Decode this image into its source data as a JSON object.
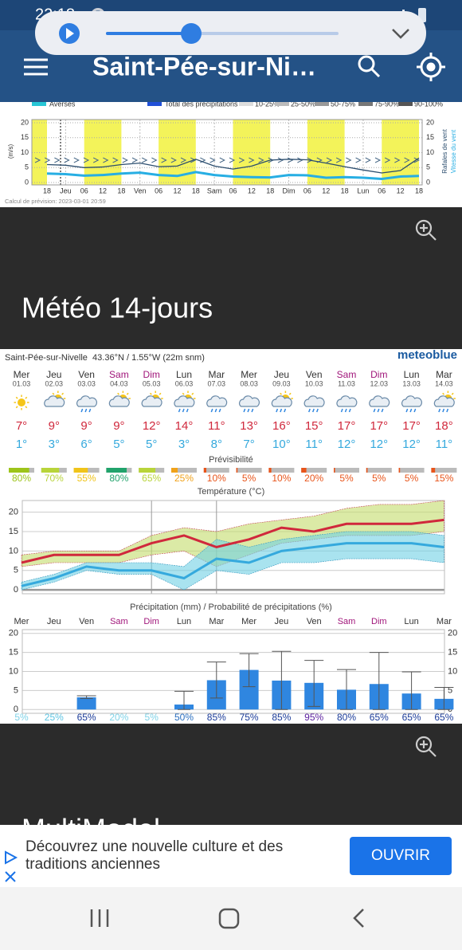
{
  "status_bar": {
    "time": "22:18",
    "notifications": "5"
  },
  "header": {
    "title": "Saint-Pée-sur-Ni…"
  },
  "wind_chart": {
    "legend": [
      "Averses",
      "Total des précipitations",
      "10-25%",
      "25-50%",
      "50-75%",
      "75-90%",
      "90-100%"
    ],
    "y_label": "(m/s)",
    "y2_labels": [
      "Rafales de vent",
      "Vitesse du vent"
    ],
    "x_labels": [
      "18",
      "Jeu",
      "06",
      "12",
      "18",
      "Ven",
      "06",
      "12",
      "18",
      "Sam",
      "06",
      "12",
      "18",
      "Dim",
      "06",
      "12",
      "18",
      "Lun",
      "06",
      "12",
      "18"
    ],
    "ylim": [
      0,
      20
    ],
    "yticks": [
      0,
      5,
      10,
      15,
      20
    ],
    "gusts": {
      "color": "#2b4d6e",
      "values": [
        6,
        5.8,
        5,
        5.2,
        6,
        6.5,
        5.3,
        5.5,
        7.8,
        5.5,
        4.5,
        5.5,
        7.5,
        7.8,
        7.6,
        6.5,
        5.3,
        4.2,
        3.2,
        4,
        8.2
      ]
    },
    "speed": {
      "color": "#27aee3",
      "values": [
        3,
        2.8,
        2.3,
        2.5,
        3,
        3.3,
        2.5,
        2.2,
        3.5,
        2.5,
        2,
        1.8,
        1.7,
        2.5,
        2.4,
        1.6,
        1.8,
        1.6,
        1.2,
        2,
        2.2
      ]
    },
    "footer": "Calcul de prévision: 2023-03-01 20:59"
  },
  "section_titles": [
    "Météo 14-jours",
    "MultiModel"
  ],
  "forecast": {
    "location": "Saint-Pée-sur-Nivelle  43.36°N / 1.55°W (22m snm)",
    "brand": "meteoblue",
    "days": [
      {
        "name": "Mer",
        "date": "01.03",
        "color": "#333333"
      },
      {
        "name": "Jeu",
        "date": "02.03",
        "color": "#333333"
      },
      {
        "name": "Ven",
        "date": "03.03",
        "color": "#333333"
      },
      {
        "name": "Sam",
        "date": "04.03",
        "color": "#a0157a"
      },
      {
        "name": "Dim",
        "date": "05.03",
        "color": "#a0157a"
      },
      {
        "name": "Lun",
        "date": "06.03",
        "color": "#333333"
      },
      {
        "name": "Mar",
        "date": "07.03",
        "color": "#333333"
      },
      {
        "name": "Mer",
        "date": "08.03",
        "color": "#333333"
      },
      {
        "name": "Jeu",
        "date": "09.03",
        "color": "#333333"
      },
      {
        "name": "Ven",
        "date": "10.03",
        "color": "#333333"
      },
      {
        "name": "Sam",
        "date": "11.03",
        "color": "#a0157a"
      },
      {
        "name": "Dim",
        "date": "12.03",
        "color": "#a0157a"
      },
      {
        "name": "Lun",
        "date": "13.03",
        "color": "#333333"
      },
      {
        "name": "Mar",
        "date": "14.03",
        "color": "#333333"
      }
    ],
    "max_temp": {
      "color": "#d0283c",
      "values": [
        7,
        9,
        9,
        9,
        12,
        14,
        11,
        13,
        16,
        15,
        17,
        17,
        17,
        18
      ],
      "value_labels": [
        "7°",
        "9°",
        "9°",
        "9°",
        "12°",
        "14°",
        "11°",
        "13°",
        "16°",
        "15°",
        "17°",
        "17°",
        "17°",
        "18°"
      ]
    },
    "min_temp": {
      "color": "#35a9dd",
      "values": [
        1,
        3,
        6,
        5,
        5,
        3,
        8,
        7,
        10,
        11,
        12,
        12,
        12,
        11
      ],
      "value_labels": [
        "1°",
        "3°",
        "6°",
        "5°",
        "5°",
        "3°",
        "8°",
        "7°",
        "10°",
        "11°",
        "12°",
        "12°",
        "12°",
        "11°"
      ]
    },
    "predictability": {
      "title": "Prévisibilité",
      "values": [
        80,
        70,
        55,
        80,
        65,
        25,
        10,
        5,
        10,
        20,
        5,
        5,
        5,
        15
      ],
      "value_labels": [
        "80%",
        "70%",
        "55%",
        "80%",
        "65%",
        "25%",
        "10%",
        "5%",
        "10%",
        "20%",
        "5%",
        "5%",
        "5%",
        "15%"
      ],
      "colors": [
        "#9dc41a",
        "#b8d43a",
        "#f0c419",
        "#21a36b",
        "#b8d43a",
        "#f0a21a",
        "#e8541a",
        "#e8541a",
        "#e8541a",
        "#e8541a",
        "#e8541a",
        "#e8541a",
        "#e8541a",
        "#e8541a"
      ]
    },
    "temperature_chart": {
      "title": "Température (°C)",
      "ylim": [
        -1,
        23
      ],
      "yticks": [
        0,
        5,
        10,
        15,
        20
      ],
      "max_range": {
        "color": "#c3dc6a",
        "upper": [
          9,
          10,
          10,
          10,
          14,
          16,
          15,
          17,
          18,
          19,
          21,
          22,
          22,
          23
        ],
        "lower": [
          6,
          7,
          7,
          7,
          9,
          10,
          6,
          9,
          12,
          13,
          14,
          14,
          14,
          15
        ]
      },
      "min_range": {
        "color": "#6fd0e4",
        "upper": [
          2,
          4,
          7,
          7,
          7,
          6,
          13,
          11,
          13,
          14,
          15,
          15,
          15,
          14
        ],
        "lower": [
          0,
          2,
          5,
          4,
          4,
          0,
          5,
          4,
          7,
          7,
          8,
          8,
          8,
          7
        ]
      }
    },
    "precipitation_chart": {
      "title": "Précipitation (mm) / Probabilité de précipitations (%)",
      "ylim": [
        -1,
        21
      ],
      "yticks": [
        0,
        5,
        10,
        15,
        20
      ],
      "color": "#2f86e0",
      "values": [
        0,
        0,
        3.2,
        0,
        0,
        1.3,
        7.7,
        10.4,
        7.6,
        7,
        5.2,
        6.7,
        4.2,
        2.8
      ],
      "upper": [
        null,
        null,
        3.6,
        null,
        null,
        4.8,
        12.5,
        14.7,
        15.3,
        12.9,
        10.5,
        15,
        9.9,
        5.8
      ],
      "lower": [
        null,
        null,
        2.9,
        null,
        null,
        0,
        3,
        6,
        0,
        0.8,
        0,
        0,
        0,
        0
      ],
      "probability": {
        "values": [
          5,
          25,
          65,
          20,
          5,
          50,
          85,
          75,
          85,
          95,
          80,
          65,
          65,
          65
        ],
        "value_labels": [
          "5%",
          "25%",
          "65%",
          "20%",
          "5%",
          "50%",
          "85%",
          "75%",
          "85%",
          "95%",
          "80%",
          "65%",
          "65%",
          "65%"
        ],
        "colors": [
          "#7fd3e8",
          "#5cc4e2",
          "#1b3c9a",
          "#7fd3e8",
          "#7fd3e8",
          "#2a6fc0",
          "#1b3c9a",
          "#1b3c9a",
          "#1b3c9a",
          "#5b1fa0",
          "#1b3c9a",
          "#1b3c9a",
          "#1b3c9a",
          "#1b3c9a"
        ]
      }
    }
  },
  "ad": {
    "text": [
      "Découvrez une nouvelle culture et des",
      "traditions anciennes"
    ],
    "button": "OUVRIR"
  }
}
